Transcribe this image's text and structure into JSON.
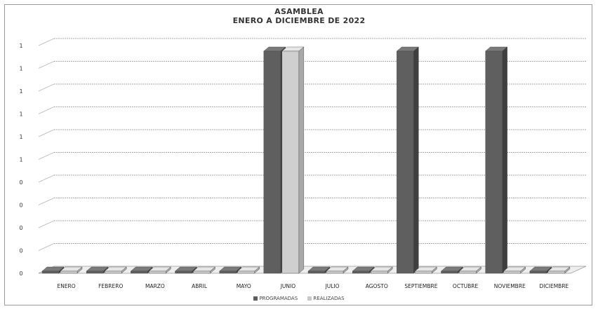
{
  "chart_data": {
    "type": "bar",
    "title": "ASAMBLEA",
    "subtitle": "ENERO A DICIEMBRE DE 2022",
    "categories": [
      "ENERO",
      "FEBRERO",
      "MARZO",
      "ABRIL",
      "MAYO",
      "JUNIO",
      "JULIO",
      "AGOSTO",
      "SEPTIEMBRE",
      "OCTUBRE",
      "NOVIEMBRE",
      "DICIEMBRE"
    ],
    "series": [
      {
        "name": "PROGRAMADAS",
        "values": [
          0,
          0,
          0,
          0,
          0,
          1,
          0,
          0,
          1,
          0,
          1,
          0
        ],
        "color": "#5e5e5e"
      },
      {
        "name": "REALIZADAS",
        "values": [
          0,
          0,
          0,
          0,
          0,
          1,
          0,
          0,
          0,
          0,
          0,
          0
        ],
        "color": "#c8c8c8"
      }
    ],
    "y_tick_labels": [
      "0",
      "0",
      "0",
      "0",
      "0",
      "1",
      "1",
      "1",
      "1",
      "1",
      "1"
    ],
    "ylim": [
      0,
      1
    ],
    "grid": true,
    "legend": "bottom",
    "three_d": true
  }
}
